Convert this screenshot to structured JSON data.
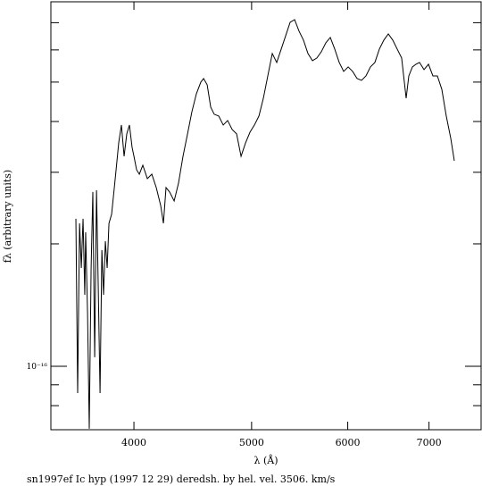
{
  "chart_data": {
    "type": "line",
    "x_label": "λ (Å)",
    "y_label": "fλ (arbitrary units)",
    "caption": "sn1997ef Ic hyp (1997 12 29) deredsh. by hel. vel.  3506. km/s",
    "xlog": true,
    "ylog": true,
    "color": "#000000",
    "xlim": [
      3417,
      7727
    ],
    "ylim": [
      6.98e-17,
      7.88e-16
    ],
    "xticks": [
      4000,
      5000,
      6000,
      7000
    ],
    "yticks": [
      {
        "value": 1e-16,
        "label": "10⁻¹⁶"
      }
    ],
    "yminor": [
      8e-17,
      9e-17,
      2e-16,
      3e-16,
      4e-16,
      5e-16,
      6e-16,
      7e-16
    ],
    "x": [
      3583,
      3595,
      3608,
      3620,
      3632,
      3644,
      3650,
      3663,
      3675,
      3688,
      3700,
      3713,
      3726,
      3738,
      3751,
      3764,
      3776,
      3789,
      3802,
      3815,
      3834,
      3854,
      3867,
      3886,
      3906,
      3926,
      3946,
      3966,
      3986,
      4000,
      4020,
      4041,
      4068,
      4103,
      4138,
      4173,
      4208,
      4230,
      4251,
      4280,
      4317,
      4353,
      4390,
      4428,
      4465,
      4503,
      4541,
      4565,
      4596,
      4627,
      4658,
      4698,
      4738,
      4778,
      4819,
      4860,
      4901,
      4943,
      4985,
      5027,
      5070,
      5113,
      5156,
      5200,
      5244,
      5289,
      5334,
      5379,
      5425,
      5471,
      5517,
      5564,
      5612,
      5659,
      5707,
      5756,
      5805,
      5854,
      5904,
      5954,
      6005,
      6056,
      6107,
      6159,
      6211,
      6264,
      6317,
      6371,
      6425,
      6480,
      6535,
      6590,
      6646,
      6703,
      6737,
      6783,
      6829,
      6875,
      6934,
      6993,
      7052,
      7112,
      7172,
      7233,
      7295,
      7344
    ],
    "values": [
      2.305e-16,
      8.59e-17,
      2.247e-16,
      1.745e-16,
      2.305e-16,
      1.499e-16,
      2.136e-16,
      1.355e-16,
      7.02e-17,
      1.745e-16,
      2.683e-16,
      1.052e-16,
      2.71e-16,
      1.577e-16,
      8.59e-17,
      1.931e-16,
      1.499e-16,
      2.031e-16,
      1.745e-16,
      2.247e-16,
      2.364e-16,
      2.751e-16,
      3.044e-16,
      3.544e-16,
      3.921e-16,
      3.285e-16,
      3.728e-16,
      3.921e-16,
      3.455e-16,
      3.285e-16,
      3.044e-16,
      2.968e-16,
      3.122e-16,
      2.894e-16,
      2.968e-16,
      2.751e-16,
      2.486e-16,
      2.247e-16,
      2.751e-16,
      2.683e-16,
      2.55e-16,
      2.822e-16,
      3.285e-16,
      3.728e-16,
      4.23e-16,
      4.681e-16,
      5e-16,
      5.102e-16,
      4.924e-16,
      4.338e-16,
      4.167e-16,
      4.125e-16,
      3.921e-16,
      4.022e-16,
      3.823e-16,
      3.728e-16,
      3.285e-16,
      3.544e-16,
      3.766e-16,
      3.921e-16,
      4.125e-16,
      4.564e-16,
      5.179e-16,
      5.878e-16,
      5.588e-16,
      6.028e-16,
      6.504e-16,
      7.017e-16,
      7.124e-16,
      6.671e-16,
      6.342e-16,
      5.878e-16,
      5.645e-16,
      5.731e-16,
      5.938e-16,
      6.246e-16,
      6.438e-16,
      6.028e-16,
      5.588e-16,
      5.312e-16,
      5.448e-16,
      5.312e-16,
      5.102e-16,
      5.05e-16,
      5.179e-16,
      5.448e-16,
      5.588e-16,
      6.028e-16,
      6.342e-16,
      6.57e-16,
      6.342e-16,
      6.028e-16,
      5.731e-16,
      4.564e-16,
      5.179e-16,
      5.448e-16,
      5.532e-16,
      5.588e-16,
      5.366e-16,
      5.532e-16,
      5.179e-16,
      5.179e-16,
      4.801e-16,
      4.125e-16,
      3.634e-16,
      3.203e-16
    ]
  }
}
